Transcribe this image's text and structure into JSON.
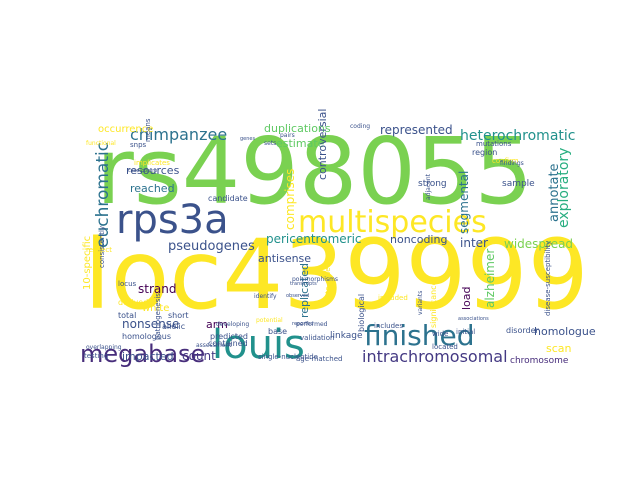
{
  "words": [
    {
      "text": "rs498055",
      "color": "#7ad151"
    },
    {
      "text": "loc439999",
      "color": "#fde725"
    },
    {
      "text": "rps3a",
      "color": "#3b528b"
    },
    {
      "text": "louis",
      "color": "#21918c"
    },
    {
      "text": "multispecies",
      "color": "#fde725"
    },
    {
      "text": "finished",
      "color": "#2c728e"
    },
    {
      "text": "megabase",
      "color": "#472d7b"
    },
    {
      "text": "chimpanzee",
      "color": "#2c728e"
    },
    {
      "text": "euchromatic",
      "color": "#2c728e"
    },
    {
      "text": "intrachromosomal",
      "color": "#443983"
    },
    {
      "text": "heterochromatic",
      "color": "#21918c"
    },
    {
      "text": "exploratory",
      "color": "#28ae80"
    },
    {
      "text": "pseudogenes",
      "color": "#3b528b"
    },
    {
      "text": "pericentromeric",
      "color": "#21918c"
    },
    {
      "text": "multispecies",
      "color": "#fde725"
    },
    {
      "text": "duplications",
      "color": "#5ec962"
    },
    {
      "text": "represented",
      "color": "#3b528b"
    },
    {
      "text": "resources",
      "color": "#3b528b"
    },
    {
      "text": "reached",
      "color": "#2c728e"
    },
    {
      "text": "estimate",
      "color": "#5ec962"
    },
    {
      "text": "comprises",
      "color": "#fde725"
    },
    {
      "text": "segmental",
      "color": "#2c728e"
    },
    {
      "text": "annotate",
      "color": "#2c728e"
    },
    {
      "text": "alzheimer",
      "color": "#5ec962"
    },
    {
      "text": "noncoding",
      "color": "#3b528b"
    },
    {
      "text": "inter",
      "color": "#3b528b"
    },
    {
      "text": "widespread",
      "color": "#7ad151"
    },
    {
      "text": "strand",
      "color": "#440154"
    },
    {
      "text": "antisense",
      "color": "#3b528b"
    },
    {
      "text": "arm",
      "color": "#440154"
    },
    {
      "text": "white",
      "color": "#fde725"
    },
    {
      "text": "nonsense",
      "color": "#3b528b"
    },
    {
      "text": "count",
      "color": "#443983"
    },
    {
      "text": "impacted",
      "color": "#3b528b"
    },
    {
      "text": "scan",
      "color": "#fde725"
    },
    {
      "text": "homologue",
      "color": "#3b528b"
    },
    {
      "text": "chromosome",
      "color": "#472d7b"
    },
    {
      "text": "replicated",
      "color": "#2c728e"
    },
    {
      "text": "controversial",
      "color": "#3b528b"
    },
    {
      "text": "load",
      "color": "#440154"
    },
    {
      "text": "occurrence",
      "color": "#fde725"
    },
    {
      "text": "10-specific",
      "color": "#fde725"
    },
    {
      "text": "linkage",
      "color": "#3b528b"
    },
    {
      "text": "strong",
      "color": "#3b528b"
    },
    {
      "text": "sample",
      "color": "#3b528b"
    },
    {
      "text": "region",
      "color": "#3b528b"
    },
    {
      "text": "mutations",
      "color": "#3b528b"
    },
    {
      "text": "confirm",
      "color": "#fde725"
    },
    {
      "text": "disorder",
      "color": "#3b528b"
    },
    {
      "text": "allelic",
      "color": "#3b528b"
    },
    {
      "text": "homologous",
      "color": "#3b528b"
    },
    {
      "text": "predicted",
      "color": "#3b528b"
    },
    {
      "text": "contained",
      "color": "#3b528b"
    },
    {
      "text": "base",
      "color": "#3b528b"
    },
    {
      "text": "validation",
      "color": "#3b528b"
    },
    {
      "text": "included",
      "color": "#fde725"
    },
    {
      "text": "short",
      "color": "#3b528b"
    },
    {
      "text": "candidate",
      "color": "#3b528b"
    },
    {
      "text": "derived",
      "color": "#fde725"
    },
    {
      "text": "total",
      "color": "#3b528b"
    },
    {
      "text": "testing",
      "color": "#3b528b"
    },
    {
      "text": "significance",
      "color": "#fde725"
    },
    {
      "text": "located",
      "color": "#3b528b"
    },
    {
      "text": "wide",
      "color": "#3b528b"
    },
    {
      "text": "initial",
      "color": "#3b528b"
    },
    {
      "text": "includes",
      "color": "#3b528b"
    },
    {
      "text": "disease-susceptibility",
      "color": "#3b528b"
    },
    {
      "text": "biological",
      "color": "#3b528b"
    },
    {
      "text": "pathogenesis",
      "color": "#3b528b"
    },
    {
      "text": "locus",
      "color": "#3b528b"
    },
    {
      "text": "respect",
      "color": "#fde725"
    },
    {
      "text": "consistently",
      "color": "#3b528b"
    },
    {
      "text": "implicates",
      "color": "#fde725"
    },
    {
      "text": "snps",
      "color": "#3b528b"
    },
    {
      "text": "means",
      "color": "#3b528b"
    },
    {
      "text": "functional",
      "color": "#fde725"
    },
    {
      "text": "coding",
      "color": "#3b528b"
    },
    {
      "text": "pairs",
      "color": "#3b528b"
    },
    {
      "text": "sets",
      "color": "#3b528b"
    },
    {
      "text": "genes",
      "color": "#3b528b"
    },
    {
      "text": "case-control",
      "color": "#3b528b"
    },
    {
      "text": "adjacent",
      "color": "#3b528b"
    },
    {
      "text": "findings",
      "color": "#3b528b"
    },
    {
      "text": "overlapping",
      "color": "#3b528b"
    },
    {
      "text": "single-nucleotide",
      "color": "#3b528b"
    },
    {
      "text": "age-matched",
      "color": "#3b528b"
    },
    {
      "text": "assessment",
      "color": "#3b528b"
    },
    {
      "text": "performed",
      "color": "#3b528b"
    },
    {
      "text": "identify",
      "color": "#3b528b"
    },
    {
      "text": "potential",
      "color": "#fde725"
    },
    {
      "text": "developing",
      "color": "#3b528b"
    },
    {
      "text": "variants",
      "color": "#3b528b"
    },
    {
      "text": "reported",
      "color": "#3b528b"
    },
    {
      "text": "associations",
      "color": "#3b528b"
    },
    {
      "text": "late-onset",
      "color": "#fde725"
    },
    {
      "text": "polymorphisms",
      "color": "#3b528b"
    },
    {
      "text": "transcripts",
      "color": "#3b528b"
    },
    {
      "text": "observed",
      "color": "#3b528b"
    }
  ]
}
